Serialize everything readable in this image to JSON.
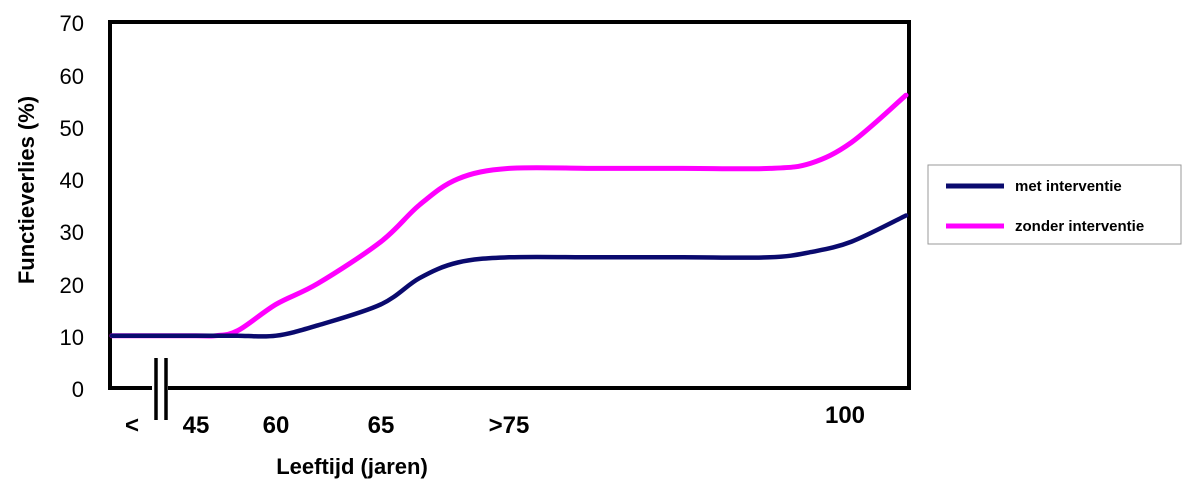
{
  "chart_data": {
    "type": "line",
    "title": "",
    "ylabel": "Functieverlies (%)",
    "xlabel": "Leeftijd (jaren)",
    "ylim": [
      0,
      70
    ],
    "yticks": [
      "0",
      "10",
      "20",
      "30",
      "40",
      "50",
      "60",
      "70"
    ],
    "xtick_labels": [
      "<",
      "45",
      "60",
      "65",
      ">75",
      "100"
    ],
    "grid": false,
    "legend_position": "right",
    "series": [
      {
        "name": "met interventie",
        "color": "#0a0a6e",
        "points": [
          {
            "x": 40,
            "y": 10
          },
          {
            "x": 45,
            "y": 10
          },
          {
            "x": 50,
            "y": 10
          },
          {
            "x": 55,
            "y": 10
          },
          {
            "x": 60,
            "y": 10
          },
          {
            "x": 62,
            "y": 12
          },
          {
            "x": 65,
            "y": 16
          },
          {
            "x": 68,
            "y": 21
          },
          {
            "x": 71,
            "y": 24
          },
          {
            "x": 75,
            "y": 25
          },
          {
            "x": 80,
            "y": 25
          },
          {
            "x": 85,
            "y": 25
          },
          {
            "x": 90,
            "y": 25
          },
          {
            "x": 93,
            "y": 26
          },
          {
            "x": 96,
            "y": 28
          },
          {
            "x": 100,
            "y": 33
          }
        ]
      },
      {
        "name": "zonder interventie",
        "color": "#ff00ff",
        "points": [
          {
            "x": 40,
            "y": 10
          },
          {
            "x": 45,
            "y": 10
          },
          {
            "x": 50,
            "y": 10
          },
          {
            "x": 55,
            "y": 11
          },
          {
            "x": 60,
            "y": 16
          },
          {
            "x": 62,
            "y": 20
          },
          {
            "x": 65,
            "y": 28
          },
          {
            "x": 68,
            "y": 35
          },
          {
            "x": 71,
            "y": 40
          },
          {
            "x": 75,
            "y": 42
          },
          {
            "x": 80,
            "y": 42
          },
          {
            "x": 85,
            "y": 42
          },
          {
            "x": 90,
            "y": 42
          },
          {
            "x": 93,
            "y": 43
          },
          {
            "x": 96,
            "y": 47
          },
          {
            "x": 100,
            "y": 56
          }
        ]
      }
    ]
  }
}
